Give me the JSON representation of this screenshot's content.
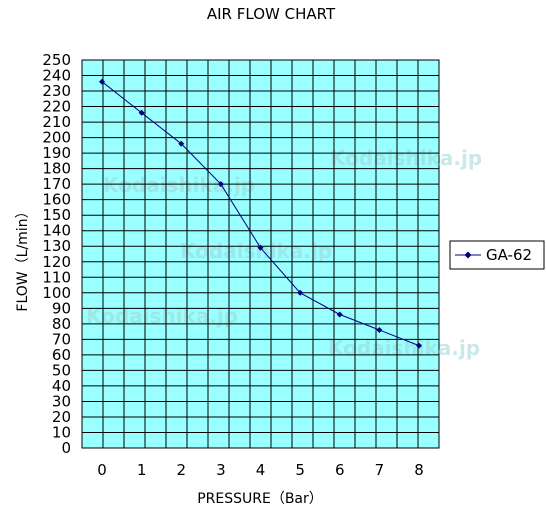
{
  "chart_data": {
    "type": "line",
    "title": "AIR FLOW CHART",
    "xlabel": "PRESSURE（Bar）",
    "ylabel": "FLOW（L/min）",
    "x": [
      0,
      1,
      2,
      3,
      4,
      5,
      6,
      7,
      8
    ],
    "xlim": [
      0,
      8
    ],
    "ylim": [
      0,
      250
    ],
    "ytick_step": 10,
    "grid": true,
    "plot_background": "#99ffff",
    "line_color": "#000080",
    "legend_position": "right",
    "series": [
      {
        "name": "GA-62",
        "values": [
          236,
          216,
          196,
          170,
          129,
          100,
          86,
          76,
          66
        ]
      }
    ],
    "watermarks": [
      "Kodaishika.jp",
      "Kodaishika.jp",
      "Kodaishika.jp",
      "Kodaishika.jp",
      "Kodaishika.jp"
    ]
  }
}
